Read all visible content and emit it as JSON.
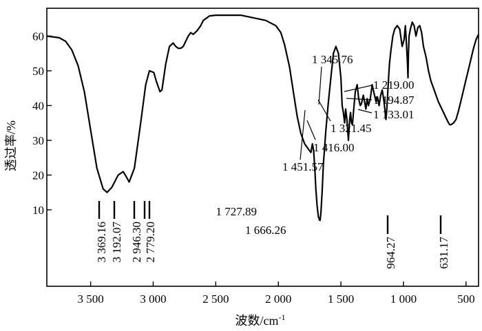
{
  "chart_data": {
    "type": "line",
    "xlabel": "波数/cm",
    "xlabel_sup": "-1",
    "ylabel": "透过率/%",
    "xlim": [
      3850,
      400
    ],
    "ylim": [
      -12,
      68
    ],
    "x_ticks": [
      3500,
      3000,
      2500,
      2000,
      1500,
      1000,
      500
    ],
    "x_tick_labels": [
      "3 500",
      "3 000",
      "2 500",
      "2 000",
      "1 500",
      "1 000",
      "500"
    ],
    "y_ticks": [
      10,
      20,
      30,
      40,
      50,
      60
    ],
    "y_tick_labels": [
      "10",
      "20",
      "30",
      "40",
      "50",
      "60"
    ],
    "series": [
      {
        "x": [
          3850,
          3750,
          3700,
          3650,
          3600,
          3550,
          3500,
          3450,
          3400,
          3369,
          3330,
          3280,
          3240,
          3215,
          3192,
          3150,
          3100,
          3060,
          3030,
          2995,
          2975,
          2946,
          2930,
          2900,
          2870,
          2840,
          2820,
          2800,
          2779,
          2760,
          2720,
          2700,
          2680,
          2650,
          2620,
          2600,
          2550,
          2500,
          2300,
          2100,
          2020,
          1980,
          1950,
          1910,
          1880,
          1850,
          1820,
          1790,
          1760,
          1740,
          1728,
          1718,
          1708,
          1700,
          1690,
          1680,
          1670,
          1666,
          1660,
          1650,
          1640,
          1620,
          1600,
          1580,
          1560,
          1540,
          1520,
          1500,
          1490,
          1480,
          1470,
          1462,
          1452,
          1440,
          1430,
          1423,
          1416,
          1408,
          1400,
          1385,
          1370,
          1358,
          1346,
          1336,
          1321,
          1310,
          1300,
          1290,
          1280,
          1265,
          1250,
          1238,
          1219,
          1208,
          1195,
          1182,
          1170,
          1155,
          1140,
          1133,
          1125,
          1118,
          1112,
          1100,
          1085,
          1070,
          1050,
          1030,
          1010,
          995,
          985,
          975,
          968,
          964,
          960,
          955,
          945,
          930,
          915,
          900,
          885,
          870,
          855,
          840,
          820,
          800,
          780,
          760,
          740,
          720,
          700,
          680,
          660,
          640,
          631,
          620,
          600,
          580,
          560,
          540,
          520,
          500,
          480,
          460,
          440,
          420,
          400
        ],
        "y": [
          60,
          59.5,
          58.5,
          56,
          51.5,
          44,
          33,
          22,
          16,
          15,
          16.5,
          20,
          21,
          19.5,
          18,
          22,
          35,
          46,
          50,
          49.5,
          47,
          44,
          44.5,
          52,
          57,
          58,
          57,
          56.5,
          56.5,
          57,
          60,
          61,
          60.5,
          61.5,
          63,
          64.5,
          65.8,
          66,
          66,
          64.5,
          63,
          61,
          57.5,
          51,
          44,
          37,
          32,
          29,
          27.5,
          26.5,
          29,
          27,
          21.5,
          16,
          11,
          8,
          7,
          7,
          9,
          15,
          23,
          33,
          41,
          48,
          55,
          57,
          55,
          48,
          40,
          38,
          35,
          39,
          36,
          30,
          36,
          38,
          35,
          34.5,
          38,
          44,
          46,
          42,
          40,
          40.5,
          43,
          41,
          39,
          42,
          40,
          42,
          46,
          44,
          41,
          42.5,
          40,
          43,
          44.5,
          41,
          36,
          39,
          44,
          48.5,
          52,
          56,
          60,
          62,
          63,
          62,
          57,
          59,
          63,
          57,
          52,
          48,
          55,
          60,
          62,
          64,
          63,
          60,
          62.5,
          63,
          61,
          57,
          54,
          50,
          47,
          45,
          43,
          41,
          39.5,
          38,
          36.5,
          35,
          34.5,
          34.5,
          35,
          36,
          38.5,
          41.5,
          44.5,
          47.5,
          50.5,
          53.5,
          56.5,
          59,
          60.5
        ]
      }
    ],
    "peak_labels": [
      "3 369.16",
      "3 192.07",
      "2 946.30",
      "2 779.20",
      "1 727.89",
      "1 666.26",
      "1 451.57",
      "1 416.00",
      "1 345.76",
      "1 321.45",
      "1 219.00",
      "1 194.87",
      "1 133.01",
      "964.27",
      "631.17"
    ]
  }
}
